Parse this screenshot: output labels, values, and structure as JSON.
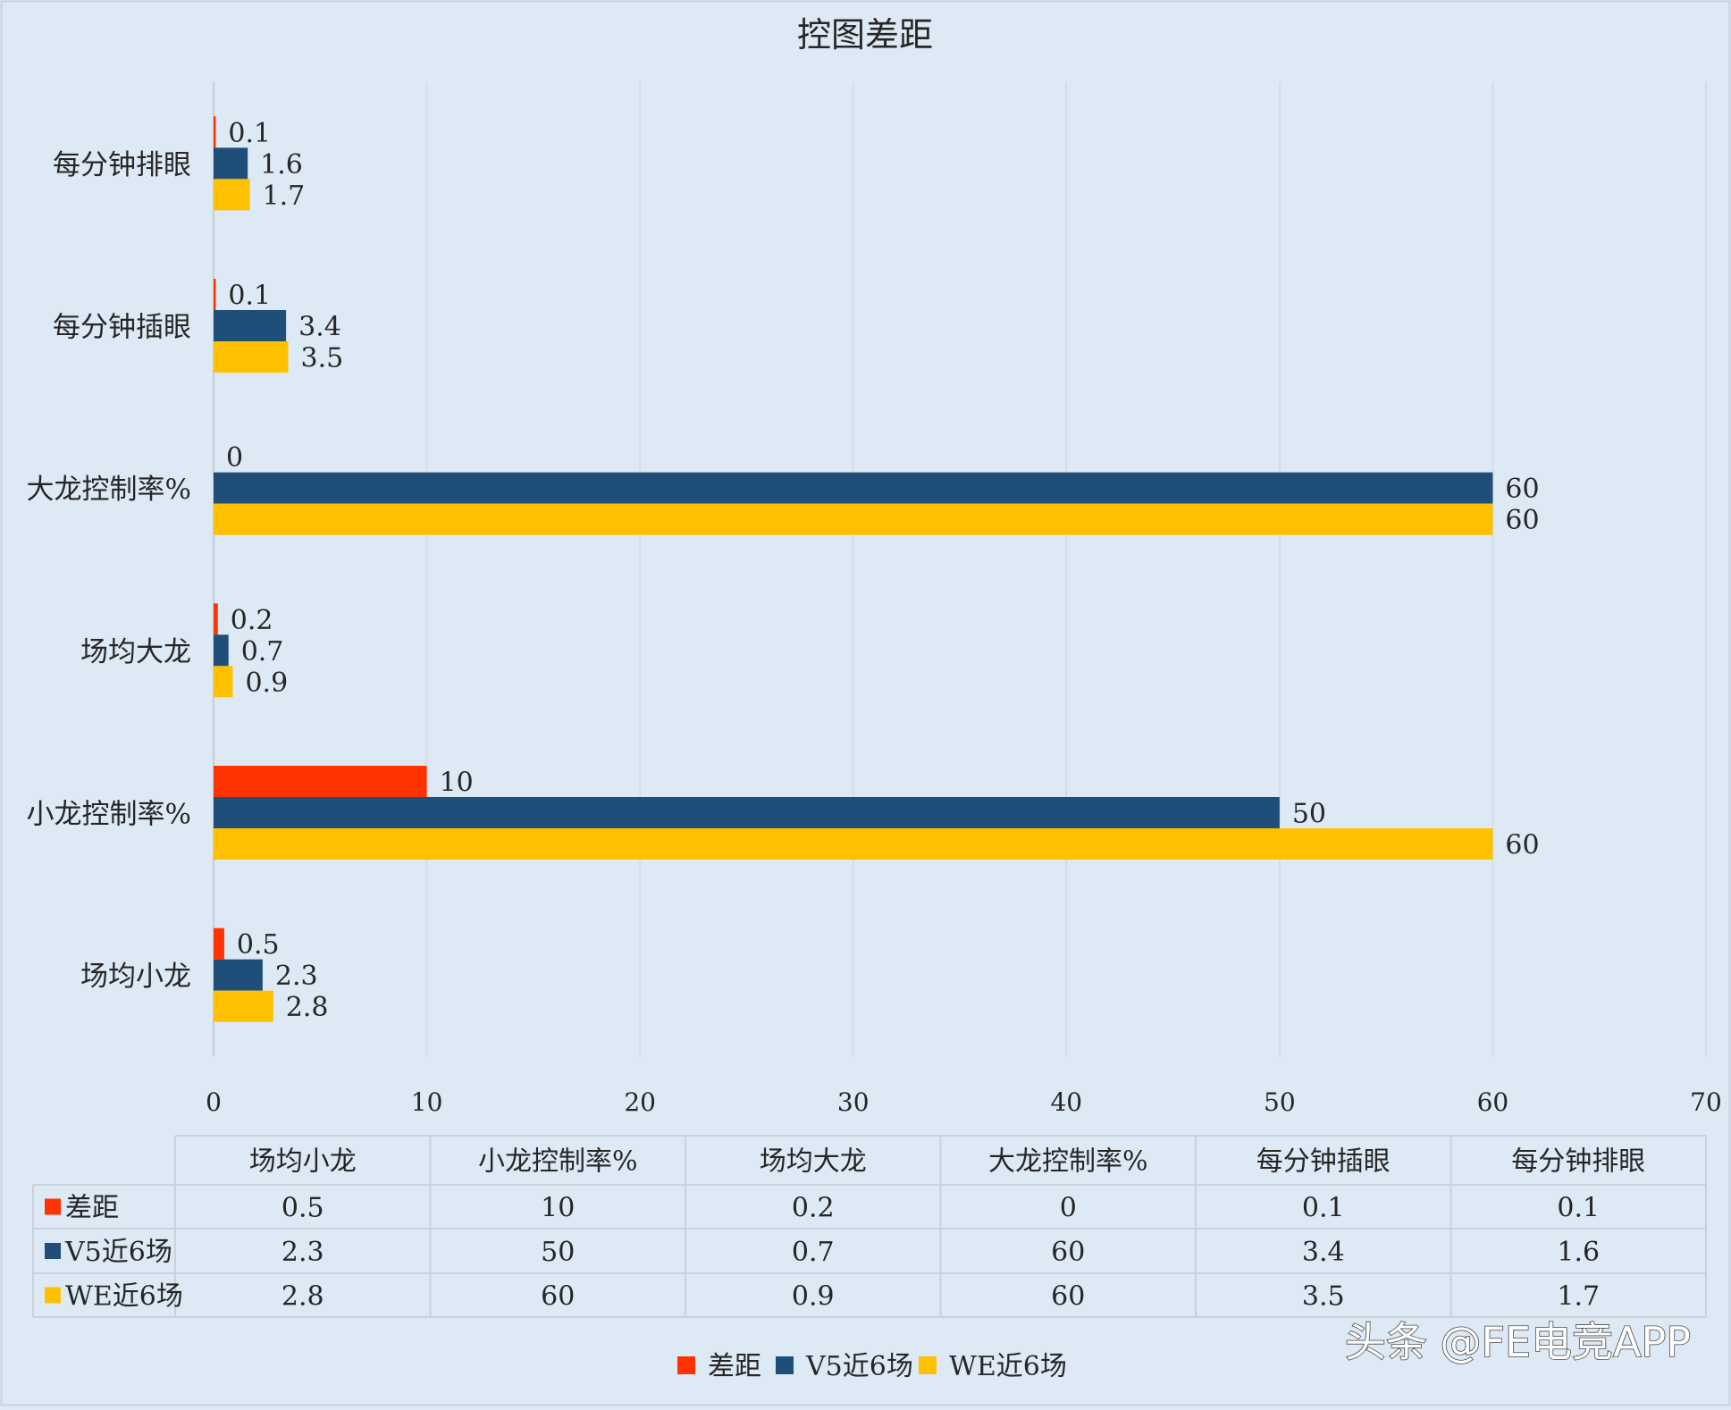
{
  "chart_data": {
    "type": "bar",
    "orientation": "horizontal",
    "title": "控图差距",
    "categories": [
      "场均小龙",
      "小龙控制率%",
      "场均大龙",
      "大龙控制率%",
      "每分钟插眼",
      "每分钟排眼"
    ],
    "series": [
      {
        "name": "差距",
        "color": "#ff3300",
        "values": [
          0.5,
          10,
          0.2,
          0,
          0.1,
          0.1
        ],
        "labels": [
          "0.5",
          "10",
          "0.2",
          "0",
          "0.1",
          "0.1"
        ]
      },
      {
        "name": "V5近6场",
        "color": "#1f4e79",
        "values": [
          2.3,
          50,
          0.7,
          60,
          3.4,
          1.6
        ],
        "labels": [
          "2.3",
          "50",
          "0.7",
          "60",
          "3.4",
          "1.6"
        ]
      },
      {
        "name": "WE近6场",
        "color": "#ffc000",
        "values": [
          2.8,
          60,
          0.9,
          60,
          3.5,
          1.7
        ],
        "labels": [
          "2.8",
          "60",
          "0.9",
          "60",
          "3.5",
          "1.7"
        ]
      }
    ],
    "xlim": [
      0,
      70
    ],
    "xticks": [
      "0",
      "10",
      "20",
      "30",
      "40",
      "50",
      "60",
      "70"
    ],
    "grid": true,
    "legend_position": "bottom",
    "data_table": true
  },
  "watermark": "头条 @FE电竞APP"
}
